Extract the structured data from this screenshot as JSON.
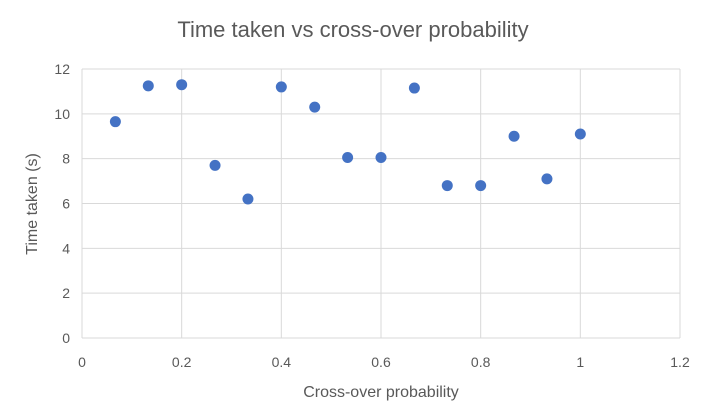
{
  "chart_data": {
    "type": "scatter",
    "title": "Time taken vs cross-over probability",
    "xlabel": "Cross-over probability",
    "ylabel": "Time taken (s)",
    "xlim": [
      0,
      1.2
    ],
    "ylim": [
      0,
      12
    ],
    "xticks": [
      0,
      0.2,
      0.4,
      0.6,
      0.8,
      1,
      1.2
    ],
    "yticks": [
      0,
      2,
      4,
      6,
      8,
      10,
      12
    ],
    "xtick_labels": [
      "0",
      "0.2",
      "0.4",
      "0.6",
      "0.8",
      "1",
      "1.2"
    ],
    "ytick_labels": [
      "0",
      "2",
      "4",
      "6",
      "8",
      "10",
      "12"
    ],
    "grid": true,
    "legend": "none",
    "point_color": "#4472c4",
    "series": [
      {
        "x": [
          0.067,
          0.133,
          0.2,
          0.267,
          0.333,
          0.4,
          0.467,
          0.533,
          0.6,
          0.667,
          0.733,
          0.8,
          0.867,
          0.933,
          1.0
        ],
        "y": [
          9.65,
          11.25,
          11.3,
          7.7,
          6.2,
          11.2,
          10.3,
          8.05,
          8.05,
          11.15,
          6.8,
          6.8,
          9.0,
          7.1,
          9.1
        ]
      }
    ]
  }
}
